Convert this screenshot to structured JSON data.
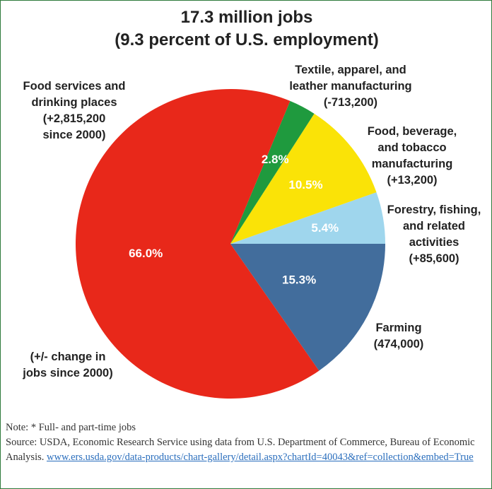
{
  "chart_data": {
    "type": "pie",
    "title_lines": [
      "17.3 million jobs",
      "(9.3 percent of U.S. employment)"
    ],
    "slices": [
      {
        "name": "Food services and drinking places",
        "value": 66.0,
        "label": "66.0%",
        "color": "#e8281a",
        "annotation": [
          "Food services and",
          "drinking places",
          "(+2,815,200",
          "since 2000)"
        ]
      },
      {
        "name": "Textile, apparel, and leather manufacturing",
        "value": 2.8,
        "label": "2.8%",
        "color": "#1f9a3e",
        "annotation": [
          "Textile, apparel, and",
          "leather manufacturing",
          "(-713,200)"
        ]
      },
      {
        "name": "Food, beverage, and tobacco manufacturing",
        "value": 10.5,
        "label": "10.5%",
        "color": "#fae307",
        "annotation": [
          "Food, beverage,",
          "and tobacco",
          "manufacturing",
          "(+13,200)"
        ]
      },
      {
        "name": "Forestry, fishing, and related activities",
        "value": 5.4,
        "label": "5.4%",
        "color": "#9fd6ed",
        "annotation": [
          "Forestry, fishing,",
          "and related",
          "activities",
          "(+85,600)"
        ]
      },
      {
        "name": "Farming",
        "value": 15.3,
        "label": "15.3%",
        "color": "#426d9c",
        "annotation": [
          "Farming",
          "(474,000)"
        ]
      }
    ],
    "legend_note": [
      "(+/- change in",
      "jobs since 2000)"
    ]
  },
  "notes": {
    "note": "Note: * Full- and part-time jobs",
    "source": "Source: USDA, Economic Research Service using data from U.S. Department of Commerce, Bureau of Economic Analysis.",
    "link": "www.ers.usda.gov/data-products/chart-gallery/detail.aspx?chartId=40043&ref=collection&embed=True"
  }
}
